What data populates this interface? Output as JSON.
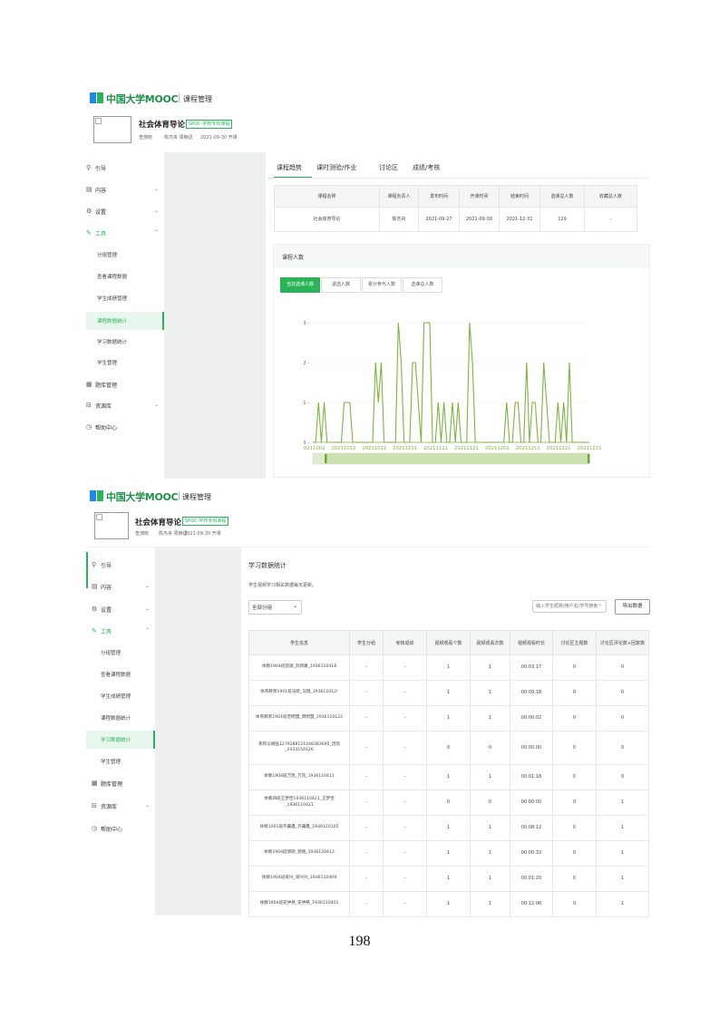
{
  "top": {
    "logo_text": "中国大学MOOC",
    "logo_sub": "课程管理",
    "course_title": "社会体育导论",
    "course_tag": "SPOC-学校专有课程",
    "teachers": "查漪晓",
    "teachers2": "陈杰舟 周楠迅",
    "start_date": "2021-09-30 开课",
    "sidebar": {
      "guide": "引导",
      "content": "内容",
      "settings": "设置",
      "tools": "工具",
      "tool_items": [
        "分组管理",
        "查看课程数据",
        "学生成绩管理",
        "课程数据统计",
        "学习数据统计",
        "学生管理"
      ],
      "question_bank": "题库管理",
      "resources": "资源库",
      "help": "帮助中心"
    },
    "tabs": [
      "课程趋势",
      "课时测验/作业",
      "讨论区",
      "成绩/考核"
    ],
    "course_table": {
      "headers": [
        "课程名称",
        "课程负责人",
        "发布时间",
        "开课时间",
        "结束时间",
        "选课总人数",
        "收藏总人数"
      ],
      "row": [
        "社会体育导论",
        "陈杰舟",
        "2021-09-27",
        "2021-09-30",
        "2021-12-31",
        "129",
        "-"
      ]
    },
    "panel_title": "课程人数",
    "metric_tabs": [
      "当日选课人数",
      "退选人数",
      "累计参与人数",
      "选课总人数"
    ],
    "chart_data": {
      "type": "line",
      "x_tick_labels": [
        "20211002",
        "20211012",
        "20211022",
        "20211101",
        "20211111",
        "20211121",
        "20211201",
        "20211211",
        "20211221",
        "20211231"
      ],
      "y_ticks": [
        0,
        1,
        2,
        3
      ],
      "ylim": [
        0,
        3
      ],
      "series": [
        {
          "values": [
            0,
            0,
            1,
            0,
            1,
            0,
            0,
            0,
            0,
            0,
            0,
            1,
            1,
            1,
            0,
            0,
            0,
            0,
            0,
            0,
            0,
            0,
            2,
            1,
            2,
            0,
            0,
            0,
            0,
            0,
            3,
            2,
            0,
            0,
            0,
            2,
            2,
            1,
            0,
            3,
            3,
            3,
            0,
            0,
            1,
            0,
            1,
            0,
            0,
            1,
            0,
            1,
            0,
            0,
            0,
            3,
            2,
            0,
            0,
            0,
            0,
            0,
            0,
            0,
            0,
            0,
            0,
            0,
            1,
            0,
            0,
            1,
            1,
            0,
            0,
            2,
            0,
            1,
            1,
            0,
            0,
            2,
            1,
            0,
            0,
            0,
            1,
            0,
            1,
            0,
            2,
            0,
            0,
            0,
            0,
            0,
            0,
            0
          ]
        }
      ],
      "line_color": "#7cb342"
    }
  },
  "bottom": {
    "logo_text": "中国大学MOOC",
    "logo_sub": "课程管理",
    "course_title": "社会体育导论",
    "course_tag": "SPOC-学校专有课程",
    "teachers": "查漪晓",
    "teachers2": "陈杰舟 周楠迅",
    "start_date": "2021-09-30 开课",
    "sidebar": {
      "guide": "引导",
      "content": "内容",
      "settings": "设置",
      "tools": "工具",
      "tool_items": [
        "分组管理",
        "查看课程数据",
        "学生成绩管理",
        "课程数据统计",
        "学习数据统计",
        "学生管理"
      ],
      "question_bank": "题库管理",
      "resources": "资源库",
      "help": "帮助中心"
    },
    "section_title": "学习数据统计",
    "section_desc": "学生视频学习相关数据每天更新。",
    "group_select": "全部分组",
    "search_placeholder": "输入学生昵称/用户名/学号搜索",
    "export_label": "导出数据",
    "table": {
      "headers": [
        "学生信息",
        "学生分组",
        "考核成绩",
        "视频观看个数",
        "视频观看次数",
        "视频观看时长",
        "讨论区主题数",
        "讨论区评论数+回复数"
      ],
      "rows": [
        [
          "体教1904班饶源_刘炜康_1936110418",
          "-",
          "-",
          "1",
          "1",
          "00:03:17",
          "0",
          "0"
        ],
        [
          "体育教育1901班马晓_马瑞_193611012!",
          "-",
          "-",
          "1",
          "1",
          "00:09:18",
          "0",
          "0"
        ],
        [
          "体育教育1901班范明慧_周明慧_1936110122",
          "-",
          "-",
          "1",
          "1",
          "00:00:02",
          "0",
          "0"
        ],
        [
          "贺阿以胡猛1279288121048383695_饶凯_2033150126",
          "-",
          "-",
          "0",
          "0",
          "00:00:00",
          "0",
          "0"
        ],
        [
          "体教1904班万凯_万凯_1936110411",
          "-",
          "-",
          "1",
          "1",
          "00:01:18",
          "0",
          "0"
        ],
        [
          "体教四班王梦佳1936110421_王梦佳_1936110421",
          "-",
          "-",
          "0",
          "0",
          "00:00:00",
          "0",
          "1"
        ],
        [
          "体教1001班齐翼鑫_齐翼鑫_1936120105",
          "-",
          "-",
          "1",
          "1",
          "00:08:12",
          "0",
          "1"
        ],
        [
          "体教1904班郭晓_郭晓_1936120413",
          "-",
          "-",
          "1",
          "1",
          "00:00:32",
          "0",
          "1"
        ],
        [
          "体教1904班梁兴_梁兴兴_1936110409",
          "-",
          "-",
          "1",
          "1",
          "00:01:20",
          "0",
          "1"
        ],
        [
          "体教1904班史仲慈_史仲慈_1936110401",
          "-",
          "-",
          "1",
          "1",
          "00:12:06",
          "0",
          "1"
        ]
      ]
    }
  },
  "page_number": "198"
}
